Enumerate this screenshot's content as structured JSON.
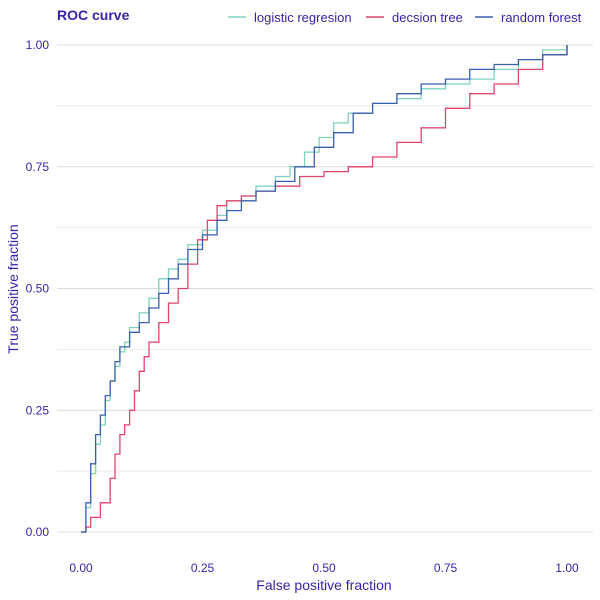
{
  "chart_data": {
    "type": "line",
    "title": "ROC curve",
    "xlabel": "False positive fraction",
    "ylabel": "True positive fraction",
    "xlim": [
      0,
      1
    ],
    "ylim": [
      0,
      1
    ],
    "x_ticks": [
      "0.00",
      "0.25",
      "0.50",
      "0.75",
      "1.00"
    ],
    "y_ticks": [
      "0.00",
      "0.25",
      "0.50",
      "0.75",
      "1.00"
    ],
    "grid": "horizontal",
    "legend_position": "top",
    "text_color": "#3b1fa8",
    "grid_color": "#dcdcdc",
    "series": [
      {
        "name": "logistic regresion",
        "color": "#7fd2c0",
        "points": [
          [
            0,
            0
          ],
          [
            0.01,
            0.05
          ],
          [
            0.02,
            0.12
          ],
          [
            0.03,
            0.18
          ],
          [
            0.04,
            0.22
          ],
          [
            0.05,
            0.27
          ],
          [
            0.06,
            0.31
          ],
          [
            0.07,
            0.34
          ],
          [
            0.08,
            0.37
          ],
          [
            0.09,
            0.39
          ],
          [
            0.1,
            0.42
          ],
          [
            0.12,
            0.45
          ],
          [
            0.14,
            0.48
          ],
          [
            0.16,
            0.52
          ],
          [
            0.18,
            0.54
          ],
          [
            0.2,
            0.56
          ],
          [
            0.22,
            0.59
          ],
          [
            0.25,
            0.62
          ],
          [
            0.28,
            0.65
          ],
          [
            0.3,
            0.68
          ],
          [
            0.33,
            0.69
          ],
          [
            0.36,
            0.71
          ],
          [
            0.4,
            0.73
          ],
          [
            0.43,
            0.75
          ],
          [
            0.46,
            0.78
          ],
          [
            0.49,
            0.81
          ],
          [
            0.52,
            0.84
          ],
          [
            0.55,
            0.86
          ],
          [
            0.6,
            0.88
          ],
          [
            0.65,
            0.89
          ],
          [
            0.7,
            0.91
          ],
          [
            0.75,
            0.92
          ],
          [
            0.8,
            0.93
          ],
          [
            0.85,
            0.95
          ],
          [
            0.9,
            0.97
          ],
          [
            0.95,
            0.99
          ],
          [
            1.0,
            1.0
          ]
        ]
      },
      {
        "name": "decsion tree",
        "color": "#e0456b",
        "points": [
          [
            0,
            0
          ],
          [
            0.01,
            0.01
          ],
          [
            0.02,
            0.03
          ],
          [
            0.04,
            0.06
          ],
          [
            0.06,
            0.11
          ],
          [
            0.07,
            0.16
          ],
          [
            0.08,
            0.2
          ],
          [
            0.09,
            0.22
          ],
          [
            0.1,
            0.25
          ],
          [
            0.11,
            0.29
          ],
          [
            0.12,
            0.33
          ],
          [
            0.13,
            0.36
          ],
          [
            0.14,
            0.39
          ],
          [
            0.16,
            0.43
          ],
          [
            0.18,
            0.47
          ],
          [
            0.2,
            0.5
          ],
          [
            0.22,
            0.55
          ],
          [
            0.24,
            0.6
          ],
          [
            0.26,
            0.64
          ],
          [
            0.28,
            0.67
          ],
          [
            0.3,
            0.68
          ],
          [
            0.33,
            0.69
          ],
          [
            0.36,
            0.7
          ],
          [
            0.4,
            0.71
          ],
          [
            0.45,
            0.73
          ],
          [
            0.5,
            0.74
          ],
          [
            0.55,
            0.75
          ],
          [
            0.6,
            0.77
          ],
          [
            0.65,
            0.8
          ],
          [
            0.7,
            0.83
          ],
          [
            0.75,
            0.87
          ],
          [
            0.8,
            0.9
          ],
          [
            0.85,
            0.92
          ],
          [
            0.9,
            0.95
          ],
          [
            0.95,
            0.98
          ],
          [
            1.0,
            1.0
          ]
        ]
      },
      {
        "name": "random forest",
        "color": "#3a5fae",
        "points": [
          [
            0,
            0
          ],
          [
            0.01,
            0.06
          ],
          [
            0.02,
            0.14
          ],
          [
            0.03,
            0.2
          ],
          [
            0.04,
            0.24
          ],
          [
            0.05,
            0.28
          ],
          [
            0.06,
            0.31
          ],
          [
            0.07,
            0.35
          ],
          [
            0.08,
            0.38
          ],
          [
            0.1,
            0.41
          ],
          [
            0.12,
            0.43
          ],
          [
            0.14,
            0.46
          ],
          [
            0.16,
            0.49
          ],
          [
            0.18,
            0.52
          ],
          [
            0.2,
            0.55
          ],
          [
            0.22,
            0.58
          ],
          [
            0.25,
            0.61
          ],
          [
            0.28,
            0.64
          ],
          [
            0.3,
            0.66
          ],
          [
            0.33,
            0.68
          ],
          [
            0.36,
            0.7
          ],
          [
            0.4,
            0.72
          ],
          [
            0.44,
            0.75
          ],
          [
            0.48,
            0.79
          ],
          [
            0.52,
            0.82
          ],
          [
            0.56,
            0.86
          ],
          [
            0.6,
            0.88
          ],
          [
            0.65,
            0.9
          ],
          [
            0.7,
            0.92
          ],
          [
            0.75,
            0.93
          ],
          [
            0.8,
            0.95
          ],
          [
            0.85,
            0.96
          ],
          [
            0.9,
            0.97
          ],
          [
            0.95,
            0.98
          ],
          [
            1.0,
            1.0
          ]
        ]
      }
    ]
  }
}
